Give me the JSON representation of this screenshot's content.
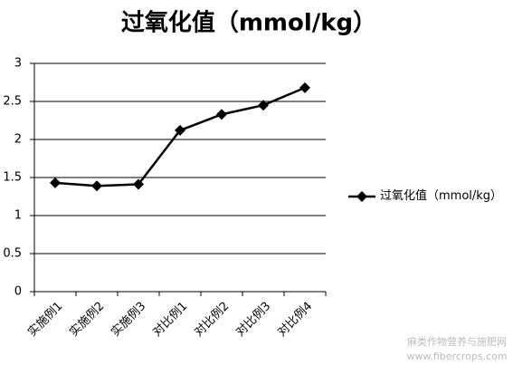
{
  "chart_data": {
    "type": "line",
    "title": "过氧化值（mmol/kg）",
    "categories": [
      "实施例1",
      "实施例2",
      "实施例3",
      "对比例1",
      "对比例2",
      "对比例3",
      "对比例4"
    ],
    "series": [
      {
        "name": "过氧化值（mmol/kg）",
        "color": "#000000",
        "values": [
          1.43,
          1.39,
          1.41,
          2.12,
          2.33,
          2.45,
          2.68
        ]
      }
    ],
    "ylim": [
      0,
      3
    ],
    "yticks": [
      0,
      0.5,
      1,
      1.5,
      2,
      2.5,
      3
    ],
    "grid": true,
    "legend": "right",
    "watermark": [
      "麻类作物营养与施肥网",
      "www.fibercrops.com"
    ]
  }
}
